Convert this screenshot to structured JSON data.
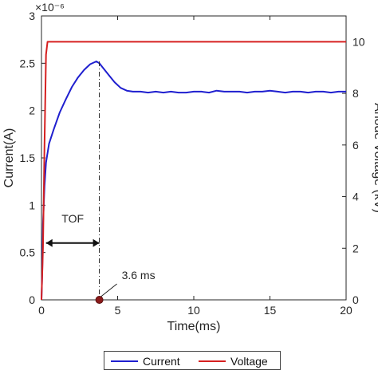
{
  "chart_data": {
    "type": "line",
    "xlabel": "Time(ms)",
    "ylabel_left": "Current(A)",
    "ylabel_right": "Anode Voltage (kV)",
    "y_left_multiplier": "×10⁻⁶",
    "xlim": [
      0,
      20
    ],
    "ylim_left": [
      0,
      3
    ],
    "ylim_right": [
      0,
      11
    ],
    "x_ticks": [
      "0",
      "5",
      "10",
      "15",
      "20"
    ],
    "y_left_ticks": [
      "0",
      "0.5",
      "1",
      "1.5",
      "2",
      "2.5",
      "3"
    ],
    "y_right_ticks": [
      "0",
      "2",
      "4",
      "6",
      "8",
      "10"
    ],
    "grid": false,
    "legend_placement": "bottom-outside",
    "series": [
      {
        "name": "Current",
        "color": "#1f1fcf",
        "axis": "left",
        "x": [
          0,
          0.05,
          0.1,
          0.2,
          0.3,
          0.5,
          0.8,
          1.2,
          1.6,
          2.0,
          2.4,
          2.8,
          3.2,
          3.6,
          3.8,
          4.0,
          4.4,
          4.8,
          5.2,
          5.6,
          6.0,
          6.5,
          7.0,
          7.5,
          8,
          8.5,
          9,
          9.5,
          10,
          10.5,
          11,
          11.5,
          12,
          12.5,
          13,
          13.5,
          14,
          14.5,
          15,
          15.5,
          16,
          16.5,
          17,
          17.5,
          18,
          18.5,
          19,
          19.5,
          20
        ],
        "y": [
          0,
          0.3,
          0.8,
          1.2,
          1.45,
          1.65,
          1.8,
          1.98,
          2.12,
          2.25,
          2.35,
          2.43,
          2.49,
          2.52,
          2.5,
          2.46,
          2.38,
          2.3,
          2.24,
          2.21,
          2.2,
          2.2,
          2.19,
          2.2,
          2.19,
          2.2,
          2.19,
          2.19,
          2.2,
          2.2,
          2.19,
          2.21,
          2.2,
          2.2,
          2.2,
          2.19,
          2.2,
          2.2,
          2.21,
          2.2,
          2.19,
          2.2,
          2.2,
          2.19,
          2.2,
          2.2,
          2.19,
          2.2,
          2.2
        ]
      },
      {
        "name": "Voltage",
        "color": "#d62020",
        "axis": "right",
        "x": [
          0,
          0.1,
          0.2,
          0.3,
          0.4,
          1,
          5,
          10,
          15,
          20
        ],
        "y": [
          0,
          2,
          6,
          9.5,
          10,
          10,
          10,
          10,
          10,
          10
        ]
      }
    ],
    "annotations": [
      {
        "text": "TOF",
        "x_start": 0.3,
        "x_end": 3.8,
        "y": 0.6,
        "yaxis": "left"
      },
      {
        "text": "3.6 ms",
        "marker_x": 3.8,
        "marker_y": 0,
        "yaxis": "left"
      }
    ]
  }
}
